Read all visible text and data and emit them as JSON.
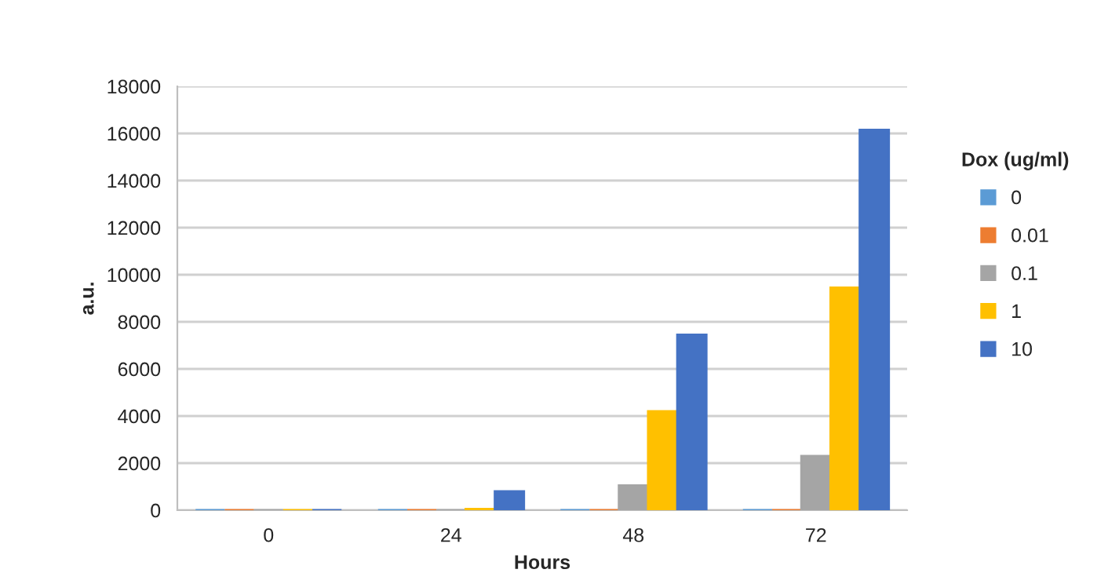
{
  "chart_data": {
    "type": "bar",
    "xlabel": "Hours",
    "ylabel": "a.u.",
    "legend_title": "Dox (ug/ml)",
    "categories": [
      "0",
      "24",
      "48",
      "72"
    ],
    "series": [
      {
        "name": "0",
        "color": "#5b9bd5",
        "values": [
          0,
          0,
          0,
          0
        ]
      },
      {
        "name": "0.01",
        "color": "#ed7d31",
        "values": [
          0,
          0,
          0,
          0
        ]
      },
      {
        "name": "0.1",
        "color": "#a5a5a5",
        "values": [
          0,
          0,
          1050,
          2300
        ]
      },
      {
        "name": "1",
        "color": "#ffc000",
        "values": [
          0,
          50,
          4200,
          9450
        ]
      },
      {
        "name": "10",
        "color": "#4472c4",
        "values": [
          0,
          800,
          7450,
          16150
        ]
      }
    ],
    "ylim": [
      0,
      18000
    ],
    "yticks": [
      0,
      2000,
      4000,
      6000,
      8000,
      10000,
      12000,
      14000,
      16000,
      18000
    ],
    "grid": "y",
    "legend": "right"
  }
}
